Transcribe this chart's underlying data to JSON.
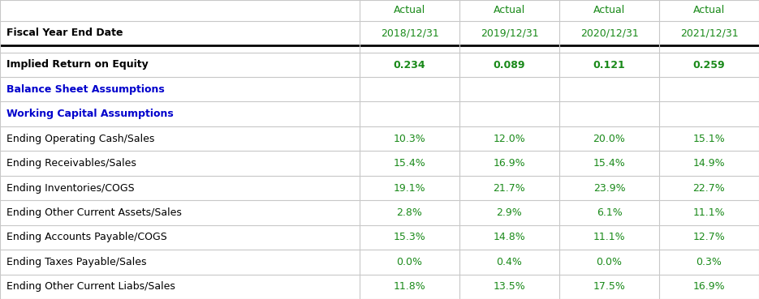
{
  "col_labels_row1": [
    "",
    "Actual",
    "Actual",
    "Actual",
    "Actual"
  ],
  "col_labels_row2": [
    "Fiscal Year End Date",
    "2018/12/31",
    "2019/12/31",
    "2020/12/31",
    "2021/12/31"
  ],
  "rows": [
    {
      "label": "Implied Return on Equity",
      "values": [
        "0.234",
        "0.089",
        "0.121",
        "0.259"
      ],
      "bold": true,
      "label_color": "#000000",
      "value_color": "#1a8a1a"
    },
    {
      "label": "Balance Sheet Assumptions",
      "values": [
        "",
        "",
        "",
        ""
      ],
      "bold": true,
      "label_color": "#0000cc",
      "value_color": "#0000cc"
    },
    {
      "label": "Working Capital Assumptions",
      "values": [
        "",
        "",
        "",
        ""
      ],
      "bold": true,
      "label_color": "#0000cc",
      "value_color": "#0000cc"
    },
    {
      "label": "Ending Operating Cash/Sales",
      "values": [
        "10.3%",
        "12.0%",
        "20.0%",
        "15.1%"
      ],
      "bold": false,
      "label_color": "#000000",
      "value_color": "#1a8a1a"
    },
    {
      "label": "Ending Receivables/Sales",
      "values": [
        "15.4%",
        "16.9%",
        "15.4%",
        "14.9%"
      ],
      "bold": false,
      "label_color": "#000000",
      "value_color": "#1a8a1a"
    },
    {
      "label": "Ending Inventories/COGS",
      "values": [
        "19.1%",
        "21.7%",
        "23.9%",
        "22.7%"
      ],
      "bold": false,
      "label_color": "#000000",
      "value_color": "#1a8a1a"
    },
    {
      "label": "Ending Other Current Assets/Sales",
      "values": [
        "2.8%",
        "2.9%",
        "6.1%",
        "11.1%"
      ],
      "bold": false,
      "label_color": "#000000",
      "value_color": "#1a8a1a"
    },
    {
      "label": "Ending Accounts Payable/COGS",
      "values": [
        "15.3%",
        "14.8%",
        "11.1%",
        "12.7%"
      ],
      "bold": false,
      "label_color": "#000000",
      "value_color": "#1a8a1a"
    },
    {
      "label": "Ending Taxes Payable/Sales",
      "values": [
        "0.0%",
        "0.4%",
        "0.0%",
        "0.3%"
      ],
      "bold": false,
      "label_color": "#000000",
      "value_color": "#1a8a1a"
    },
    {
      "label": "Ending Other Current Liabs/Sales",
      "values": [
        "11.8%",
        "13.5%",
        "17.5%",
        "16.9%"
      ],
      "bold": false,
      "label_color": "#000000",
      "value_color": "#1a8a1a"
    }
  ],
  "header_label_color": "#1a8a1a",
  "header_date_color": "#1a8a1a",
  "bg_color": "#ffffff",
  "grid_color": "#c8c8c8",
  "thick_line_color": "#000000",
  "font_size": 9.0,
  "header_font_size": 9.0
}
